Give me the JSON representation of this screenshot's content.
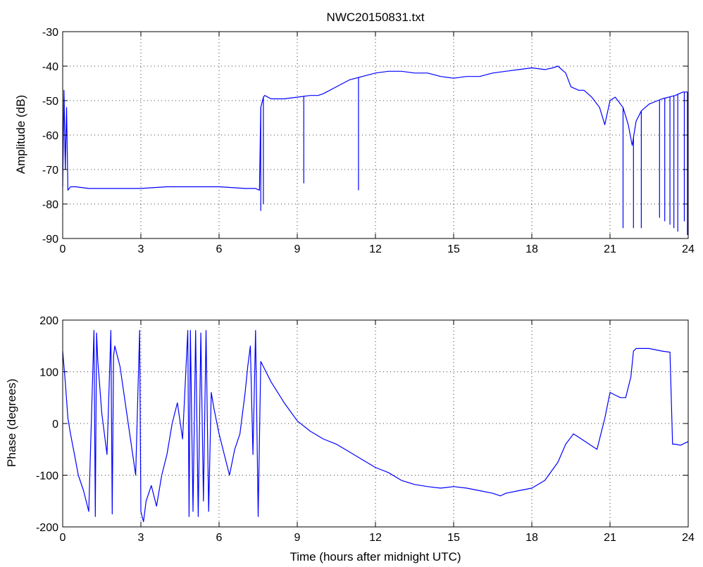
{
  "colors": {
    "series": "#0000ff",
    "axes": "#000000",
    "grid": "#000000",
    "background": "#ffffff"
  },
  "chart_data": [
    {
      "type": "line",
      "title": "NWC20150831.txt",
      "xlabel": "",
      "ylabel": "Amplitude (dB)",
      "xlim": [
        0,
        24
      ],
      "ylim": [
        -90,
        -30
      ],
      "xticks": [
        0,
        3,
        6,
        9,
        12,
        15,
        18,
        21,
        24
      ],
      "yticks": [
        -90,
        -80,
        -70,
        -60,
        -50,
        -40,
        -30
      ],
      "grid": true,
      "series": [
        {
          "x": [
            0.0,
            0.05,
            0.1,
            0.15,
            0.2,
            0.3,
            0.5,
            1.0,
            2.0,
            3.0,
            4.0,
            5.0,
            6.0,
            7.0,
            7.4,
            7.55,
            7.6,
            7.7,
            7.75,
            8.0,
            8.5,
            9.0,
            9.5,
            9.8,
            10.0,
            10.5,
            11.0,
            11.5,
            12.0,
            12.5,
            13.0,
            13.5,
            14.0,
            14.5,
            15.0,
            15.5,
            16.0,
            16.5,
            17.0,
            17.5,
            18.0,
            18.5,
            18.8,
            19.0,
            19.3,
            19.5,
            19.8,
            20.0,
            20.3,
            20.6,
            20.8,
            21.0,
            21.2,
            21.5,
            21.7,
            21.85,
            22.0,
            22.2,
            22.5,
            23.0,
            23.5,
            23.8,
            24.0
          ],
          "y": [
            -75,
            -47,
            -70,
            -52,
            -76,
            -75,
            -75,
            -75.5,
            -75.5,
            -75.5,
            -75,
            -75,
            -75,
            -75.5,
            -75.5,
            -76,
            -52,
            -49,
            -48.5,
            -49.5,
            -49.5,
            -49,
            -48.5,
            -48.5,
            -48,
            -46,
            -44,
            -43,
            -42,
            -41.5,
            -41.5,
            -42,
            -42,
            -43,
            -43.5,
            -43,
            -43,
            -42,
            -41.5,
            -41,
            -40.5,
            -41,
            -40.5,
            -40,
            -42,
            -46,
            -47,
            -47,
            -49,
            -52,
            -57,
            -50,
            -49,
            -52,
            -57,
            -63,
            -56,
            -53,
            -51,
            -49.5,
            -48.5,
            -47.5,
            -47.5
          ]
        }
      ],
      "spikes": [
        {
          "x": 0.1,
          "y": -66
        },
        {
          "x": 7.6,
          "y": -82
        },
        {
          "x": 7.7,
          "y": -80
        },
        {
          "x": 9.25,
          "y": -74
        },
        {
          "x": 11.35,
          "y": -76
        },
        {
          "x": 21.5,
          "y": -87
        },
        {
          "x": 21.9,
          "y": -87
        },
        {
          "x": 22.2,
          "y": -87
        },
        {
          "x": 22.9,
          "y": -84
        },
        {
          "x": 23.1,
          "y": -85
        },
        {
          "x": 23.3,
          "y": -86
        },
        {
          "x": 23.45,
          "y": -87
        },
        {
          "x": 23.6,
          "y": -88
        },
        {
          "x": 23.85,
          "y": -85
        },
        {
          "x": 23.97,
          "y": -89
        }
      ]
    },
    {
      "type": "line",
      "title": "",
      "xlabel": "Time (hours after midnight UTC)",
      "ylabel": "Phase (degrees)",
      "xlim": [
        0,
        24
      ],
      "ylim": [
        -200,
        200
      ],
      "xticks": [
        0,
        3,
        6,
        9,
        12,
        15,
        18,
        21,
        24
      ],
      "yticks": [
        -200,
        -100,
        0,
        100,
        200
      ],
      "grid": true,
      "series": [
        {
          "x": [
            0.0,
            0.1,
            0.2,
            0.3,
            0.45,
            0.6,
            0.8,
            1.0,
            1.2,
            1.25,
            1.3,
            1.35,
            1.5,
            1.7,
            1.85,
            1.9,
            1.95,
            2.0,
            2.2,
            2.4,
            2.6,
            2.8,
            2.95,
            3.0,
            3.1,
            3.2,
            3.4,
            3.6,
            3.8,
            4.0,
            4.2,
            4.4,
            4.6,
            4.8,
            4.85,
            4.9,
            5.0,
            5.1,
            5.2,
            5.3,
            5.4,
            5.5,
            5.6,
            5.7,
            5.8,
            6.0,
            6.2,
            6.4,
            6.6,
            6.8,
            7.0,
            7.1,
            7.2,
            7.3,
            7.4,
            7.5,
            7.6,
            7.7,
            7.8,
            8.0,
            8.5,
            9.0,
            9.5,
            10.0,
            10.5,
            11.0,
            11.5,
            12.0,
            12.5,
            13.0,
            13.5,
            14.0,
            14.5,
            15.0,
            15.5,
            16.0,
            16.5,
            16.8,
            17.0,
            17.5,
            18.0,
            18.5,
            19.0,
            19.3,
            19.6,
            19.9,
            20.2,
            20.5,
            20.8,
            21.0,
            21.2,
            21.4,
            21.6,
            21.8,
            21.9,
            22.0,
            22.5,
            23.0,
            23.3,
            23.4,
            23.5,
            23.7,
            24.0
          ],
          "y": [
            140,
            80,
            10,
            -20,
            -60,
            -100,
            -130,
            -170,
            180,
            -180,
            175,
            120,
            20,
            -60,
            180,
            -175,
            130,
            150,
            110,
            40,
            -30,
            -100,
            180,
            -170,
            -190,
            -150,
            -120,
            -160,
            -100,
            -60,
            0,
            40,
            -30,
            180,
            -180,
            180,
            -170,
            180,
            -180,
            175,
            -150,
            180,
            -170,
            60,
            30,
            -20,
            -60,
            -100,
            -50,
            -20,
            60,
            110,
            150,
            -60,
            180,
            -180,
            120,
            110,
            100,
            80,
            40,
            5,
            -15,
            -30,
            -40,
            -55,
            -70,
            -85,
            -95,
            -110,
            -118,
            -122,
            -125,
            -122,
            -125,
            -130,
            -135,
            -140,
            -135,
            -130,
            -125,
            -110,
            -75,
            -40,
            -20,
            -30,
            -40,
            -50,
            10,
            60,
            55,
            50,
            50,
            90,
            140,
            145,
            145,
            140,
            138,
            -40,
            -40,
            -42,
            -35
          ]
        }
      ]
    }
  ]
}
